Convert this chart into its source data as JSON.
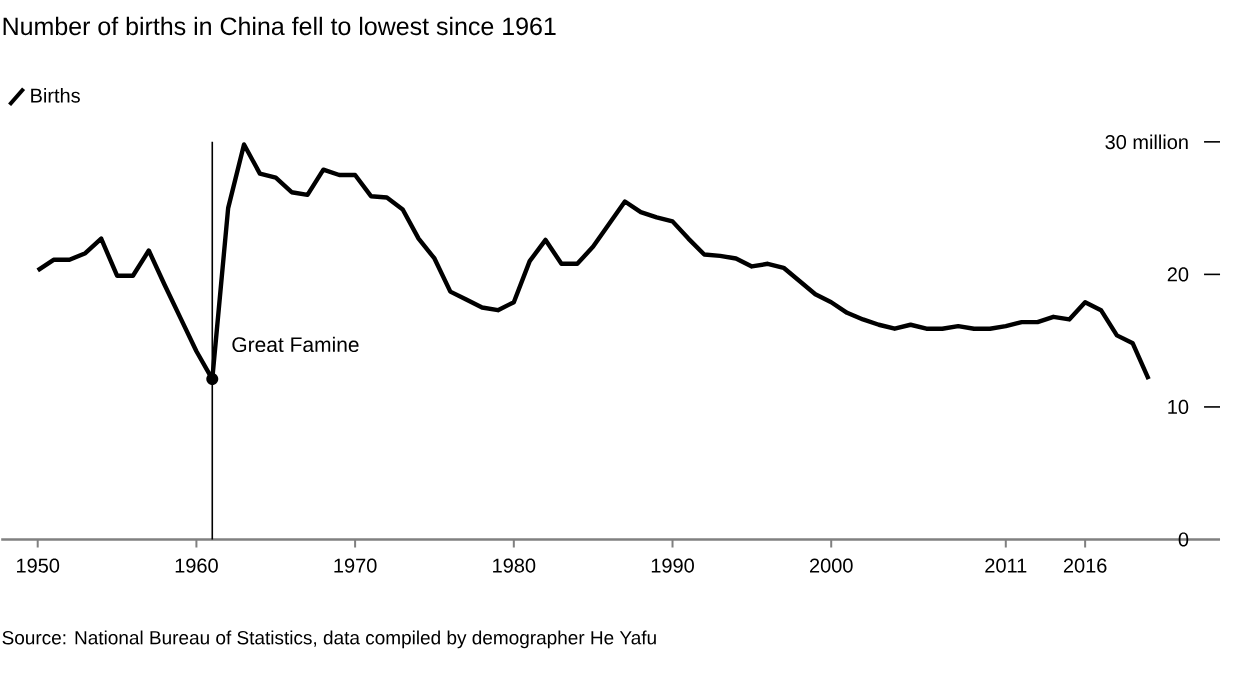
{
  "chart_data": {
    "type": "line",
    "title": "Number of births in China fell to lowest since 1961",
    "x": [
      1950,
      1951,
      1952,
      1953,
      1954,
      1955,
      1956,
      1957,
      1958,
      1959,
      1960,
      1961,
      1962,
      1963,
      1964,
      1965,
      1966,
      1967,
      1968,
      1969,
      1970,
      1971,
      1972,
      1973,
      1974,
      1975,
      1976,
      1977,
      1978,
      1979,
      1980,
      1981,
      1982,
      1983,
      1984,
      1985,
      1986,
      1987,
      1988,
      1989,
      1990,
      1991,
      1992,
      1993,
      1994,
      1995,
      1996,
      1997,
      1998,
      1999,
      2000,
      2001,
      2002,
      2003,
      2004,
      2005,
      2006,
      2007,
      2008,
      2009,
      2010,
      2011,
      2012,
      2013,
      2014,
      2015,
      2016,
      2017,
      2018,
      2019,
      2020
    ],
    "series": [
      {
        "name": "Births",
        "color": "#000000",
        "values": [
          20.3,
          21.1,
          21.1,
          21.6,
          22.7,
          19.9,
          19.9,
          21.8,
          19.2,
          16.7,
          14.2,
          12.1,
          25.0,
          29.8,
          27.6,
          27.3,
          26.2,
          26.0,
          27.9,
          27.5,
          27.5,
          25.9,
          25.8,
          24.9,
          22.7,
          21.2,
          18.7,
          18.1,
          17.5,
          17.3,
          17.9,
          21.0,
          22.6,
          20.8,
          20.8,
          22.1,
          23.8,
          25.5,
          24.7,
          24.3,
          24.0,
          22.7,
          21.5,
          21.4,
          21.2,
          20.6,
          20.8,
          20.5,
          19.5,
          18.5,
          17.9,
          17.1,
          16.6,
          16.2,
          15.9,
          16.2,
          15.9,
          15.9,
          16.1,
          15.9,
          15.9,
          16.1,
          16.4,
          16.4,
          16.8,
          16.6,
          17.9,
          17.3,
          15.4,
          14.8,
          12.1
        ]
      }
    ],
    "xlim": [
      1947.7,
      2024.5
    ],
    "xticks": [
      1950,
      1960,
      1970,
      1980,
      1990,
      2000,
      2011,
      2016
    ],
    "ylim": [
      0,
      30
    ],
    "yticks": [
      0,
      10,
      20,
      {
        "value": 30,
        "label": "30 million"
      }
    ],
    "legend": "top left",
    "line_style": "solid",
    "ref_lines": [
      {
        "axis": "x",
        "value": 1961,
        "color": "#000000"
      }
    ],
    "annotations": [
      {
        "text": "Great Famine",
        "x": 1961,
        "y": 12.1
      },
      "Source: National Bureau of Statistics, data compiled by demographer He Yafu"
    ]
  }
}
